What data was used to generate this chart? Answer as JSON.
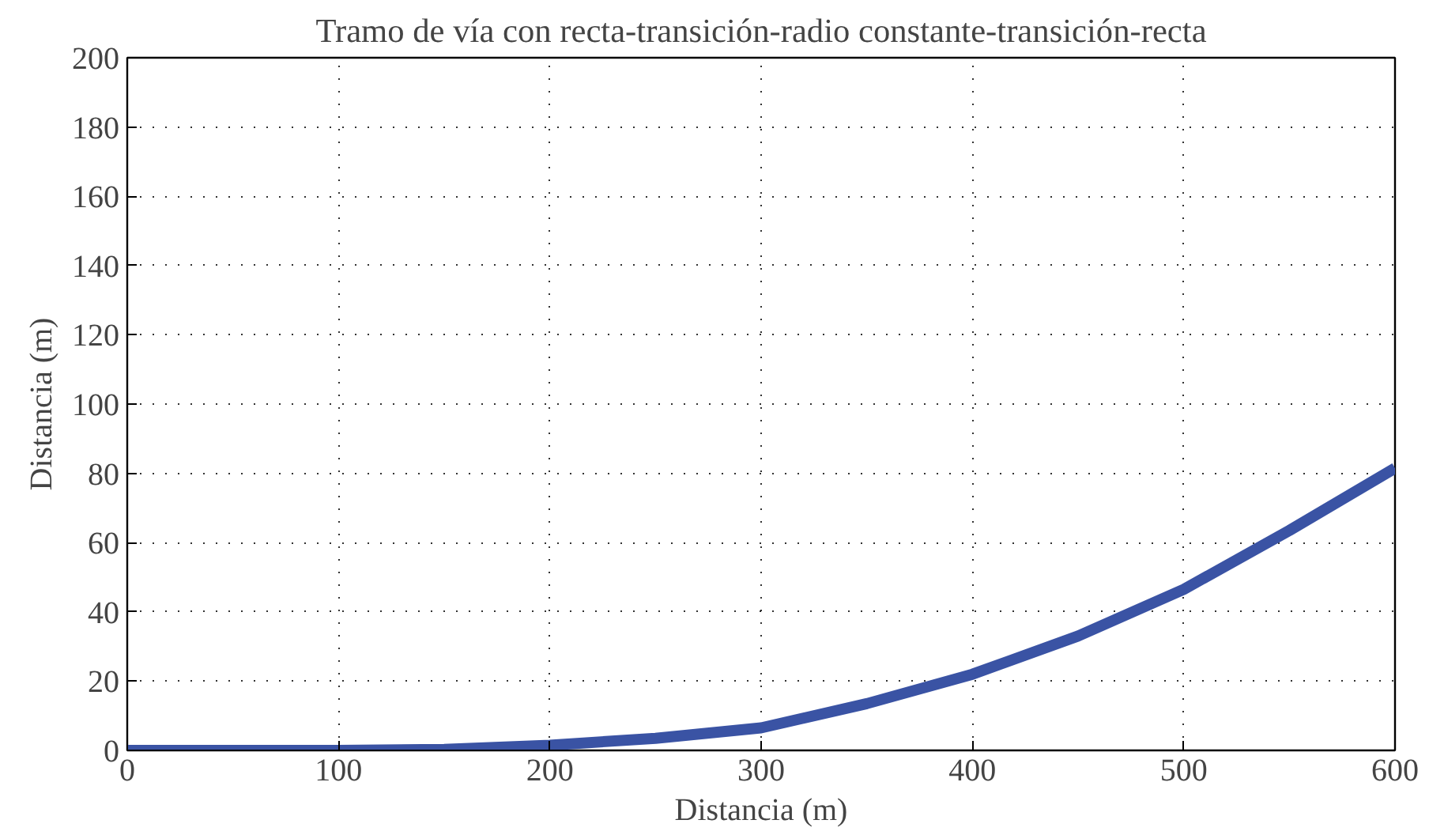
{
  "chart_data": {
    "type": "line",
    "title": "Tramo de vía con recta-transición-radio constante-transición-recta",
    "xlabel": "Distancia (m)",
    "ylabel": "Distancia (m)",
    "x": [
      0,
      50,
      100,
      150,
      200,
      250,
      300,
      350,
      400,
      450,
      500,
      550,
      600
    ],
    "series": [
      {
        "color": "#3a53a4",
        "values": [
          0,
          0,
          0,
          0.3,
          1.5,
          3.5,
          6.5,
          13.5,
          22,
          33,
          46.5,
          63.5,
          81.5
        ]
      }
    ],
    "xlim": [
      0,
      600
    ],
    "ylim": [
      0,
      200
    ],
    "xticks": [
      0,
      100,
      200,
      300,
      400,
      500,
      600
    ],
    "yticks": [
      0,
      20,
      40,
      60,
      80,
      100,
      120,
      140,
      160,
      180,
      200
    ],
    "grid": true,
    "marker": "none",
    "line_style": "solid"
  }
}
